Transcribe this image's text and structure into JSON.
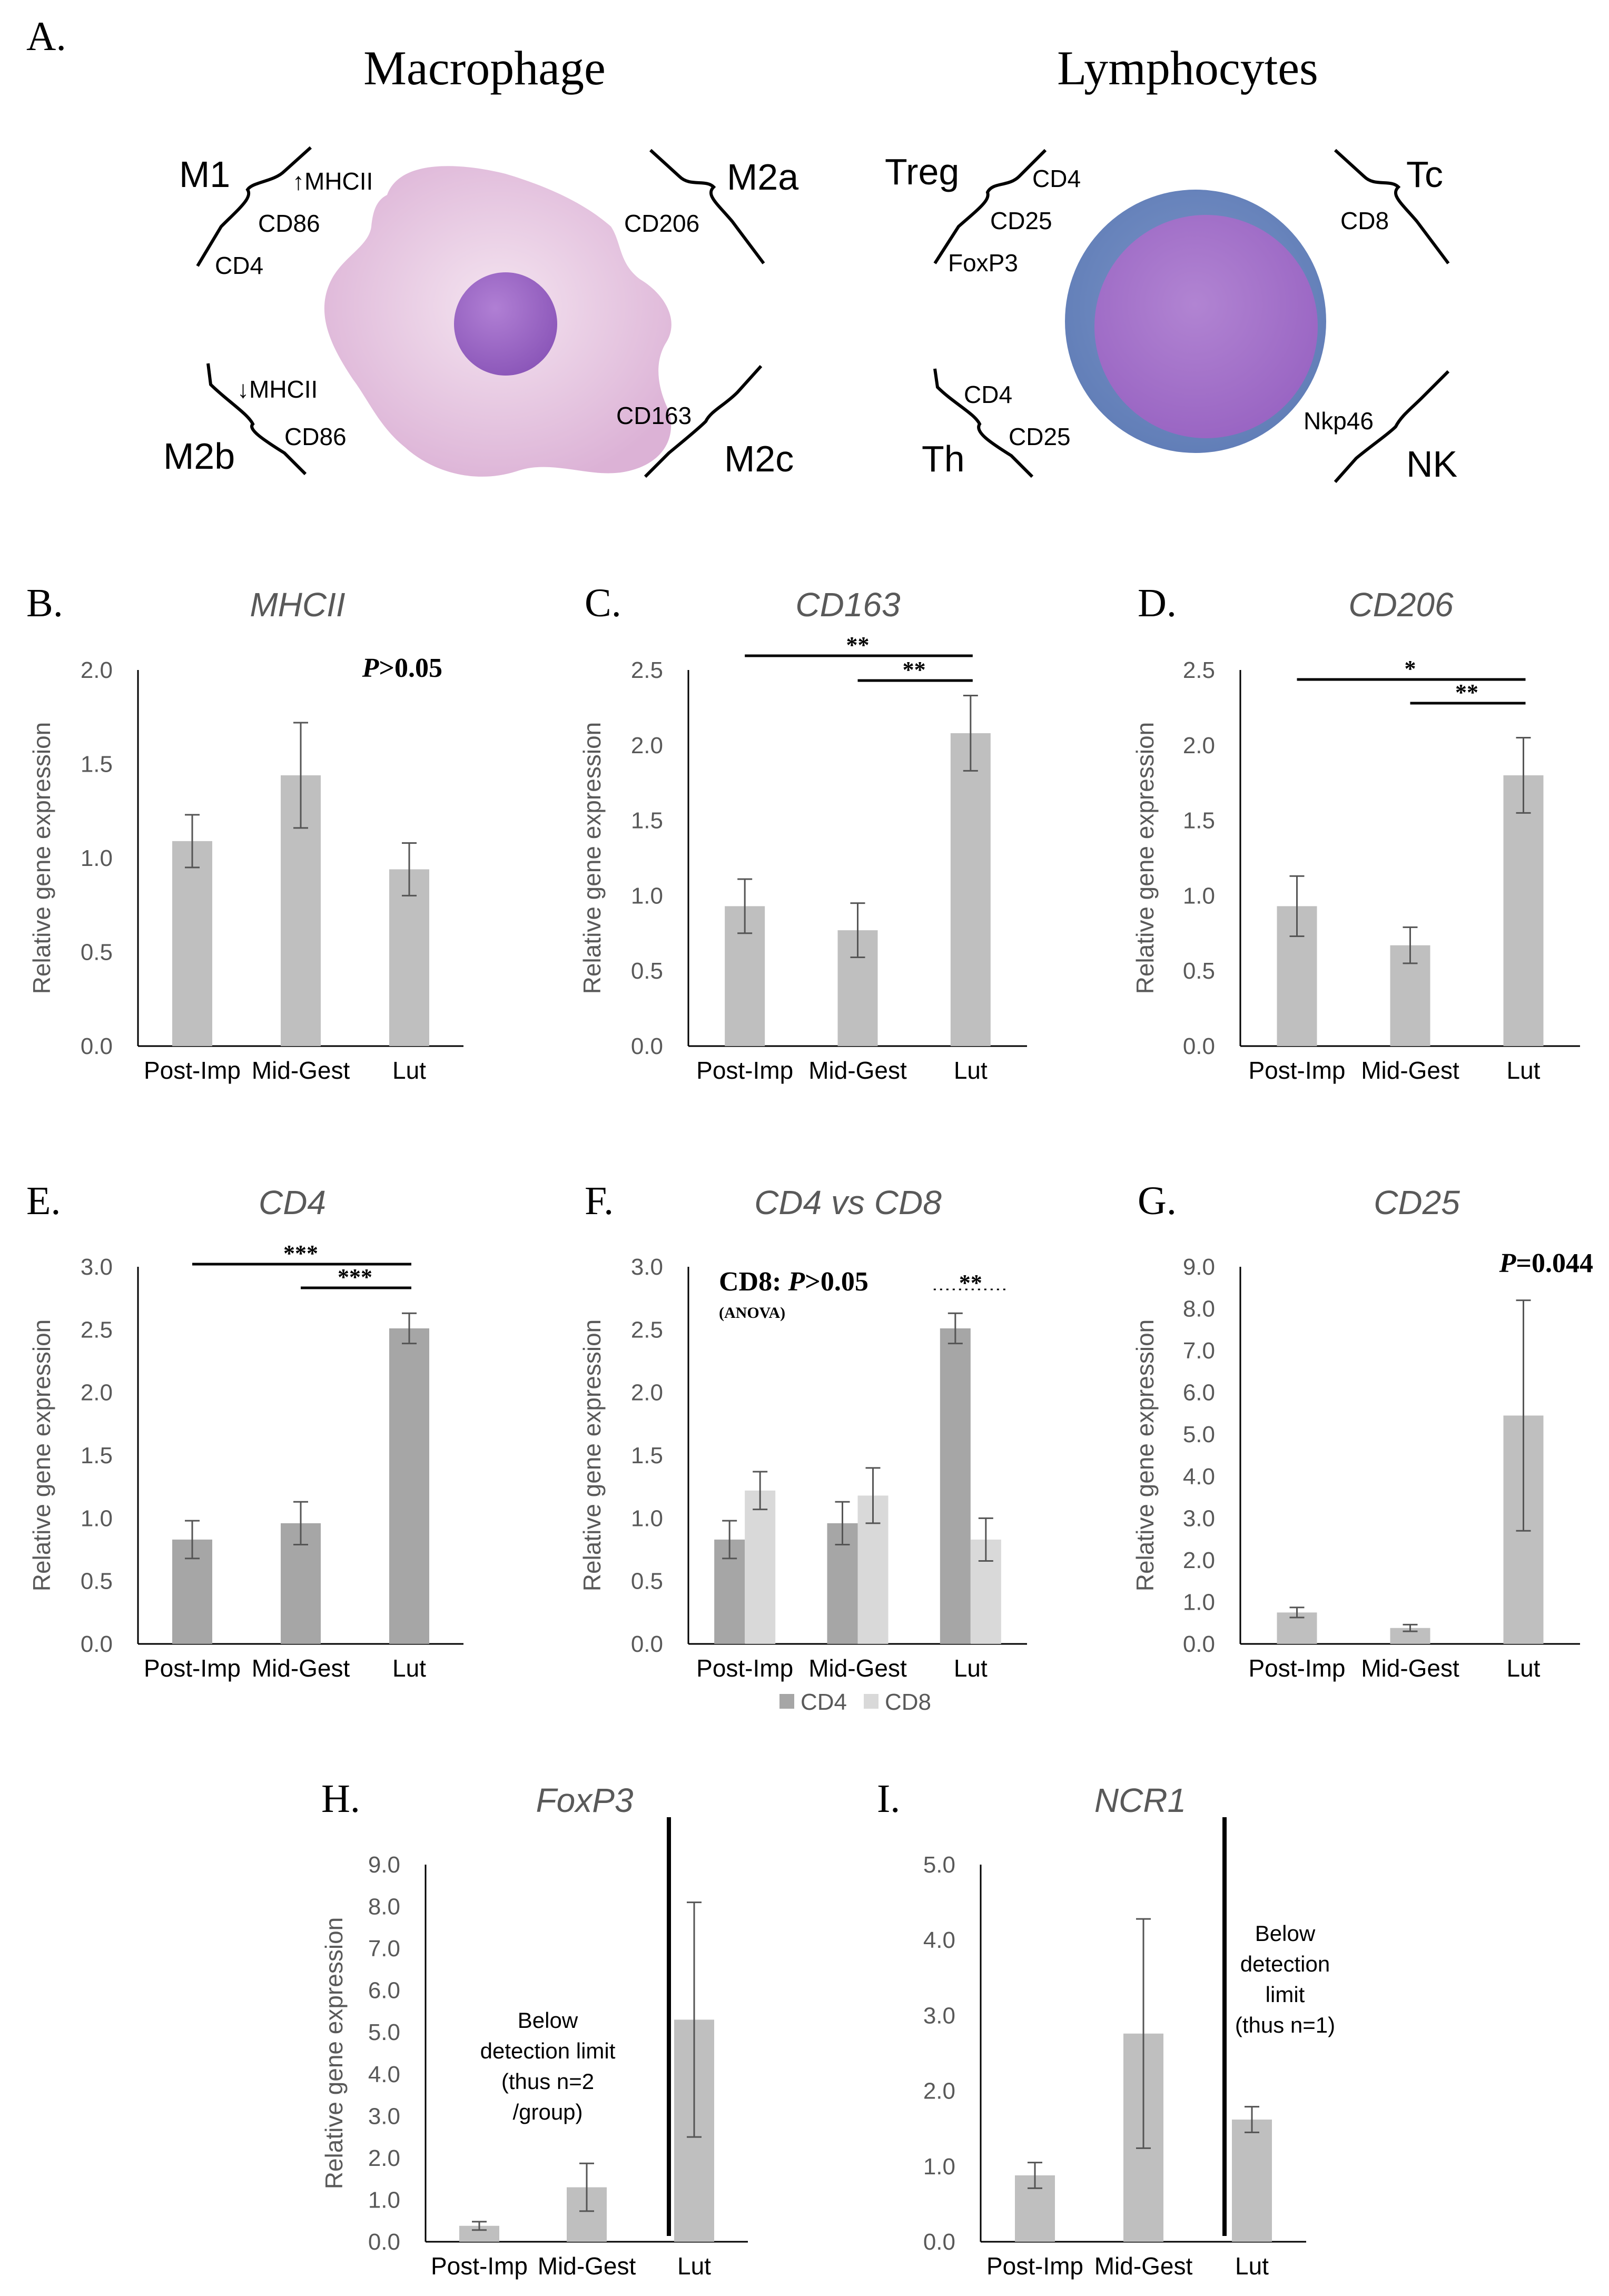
{
  "panel_a": {
    "label": "A.",
    "macrophage": {
      "title": "Macrophage",
      "groups": [
        {
          "name": "M1",
          "markers": [
            "↑MHCII",
            "CD86",
            "CD4"
          ]
        },
        {
          "name": "M2a",
          "markers": [
            "CD206"
          ]
        },
        {
          "name": "M2b",
          "markers": [
            "↓MHCII",
            "CD86"
          ]
        },
        {
          "name": "M2c",
          "markers": [
            "CD163"
          ]
        }
      ]
    },
    "lymphocytes": {
      "title": "Lymphocytes",
      "groups": [
        {
          "name": "Treg",
          "markers": [
            "CD4",
            "CD25",
            "FoxP3"
          ]
        },
        {
          "name": "Tc",
          "markers": [
            "CD8"
          ]
        },
        {
          "name": "Th",
          "markers": [
            "CD4",
            "CD25"
          ]
        },
        {
          "name": "NK",
          "markers": [
            "Nkp46"
          ]
        }
      ]
    },
    "colors": {
      "macrophage": "#e6c3e0",
      "nucleus": "#9966c2",
      "lymph_outer": "#6b86bd",
      "lymph_inner": "#a06ec6"
    }
  },
  "chart_data": [
    {
      "id": "B",
      "label": "B.",
      "type": "bar",
      "title": "MHCII",
      "ylabel": "Relative gene expression",
      "ylim": [
        0,
        2.0
      ],
      "yticks": [
        "0.0",
        "0.5",
        "1.0",
        "1.5",
        "2.0"
      ],
      "categories": [
        "Post-Imp",
        "Mid-Gest",
        "Lut"
      ],
      "series": [
        {
          "name": "MHCII",
          "color": "#bfbfbf",
          "values": [
            1.09,
            1.44,
            0.94
          ],
          "errors": [
            0.14,
            0.28,
            0.14
          ]
        }
      ],
      "annotations": [
        {
          "italic": "P",
          "text": ">0.05"
        }
      ],
      "significance": []
    },
    {
      "id": "C",
      "label": "C.",
      "type": "bar",
      "title": "CD163",
      "ylabel": "Relative gene expression",
      "ylim": [
        0,
        2.5
      ],
      "yticks": [
        "0.0",
        "0.5",
        "1.0",
        "1.5",
        "2.0",
        "2.5"
      ],
      "categories": [
        "Post-Imp",
        "Mid-Gest",
        "Lut"
      ],
      "series": [
        {
          "name": "CD163",
          "color": "#bfbfbf",
          "values": [
            0.93,
            0.77,
            2.08
          ],
          "errors": [
            0.18,
            0.18,
            0.25
          ]
        }
      ],
      "annotations": [],
      "significance": [
        {
          "from": "Post-Imp",
          "to": "Lut",
          "stars": "**"
        },
        {
          "from": "Mid-Gest",
          "to": "Lut",
          "stars": "**"
        }
      ]
    },
    {
      "id": "D",
      "label": "D.",
      "type": "bar",
      "title": "CD206",
      "ylabel": "Relative gene expression",
      "ylim": [
        0,
        2.5
      ],
      "yticks": [
        "0.0",
        "0.5",
        "1.0",
        "1.5",
        "2.0",
        "2.5"
      ],
      "categories": [
        "Post-Imp",
        "Mid-Gest",
        "Lut"
      ],
      "series": [
        {
          "name": "CD206",
          "color": "#bfbfbf",
          "values": [
            0.93,
            0.67,
            1.8
          ],
          "errors": [
            0.2,
            0.12,
            0.25
          ]
        }
      ],
      "annotations": [],
      "significance": [
        {
          "from": "Post-Imp",
          "to": "Lut",
          "stars": "*"
        },
        {
          "from": "Mid-Gest",
          "to": "Lut",
          "stars": "**"
        }
      ]
    },
    {
      "id": "E",
      "label": "E.",
      "type": "bar",
      "title": "CD4",
      "ylabel": "Relative gene expression",
      "ylim": [
        0,
        3.0
      ],
      "yticks": [
        "0.0",
        "0.5",
        "1.0",
        "1.5",
        "2.0",
        "2.5",
        "3.0"
      ],
      "categories": [
        "Post-Imp",
        "Mid-Gest",
        "Lut"
      ],
      "series": [
        {
          "name": "CD4",
          "color": "#a6a6a6",
          "values": [
            0.83,
            0.96,
            2.51
          ],
          "errors": [
            0.15,
            0.17,
            0.12
          ]
        }
      ],
      "annotations": [],
      "significance": [
        {
          "from": "Post-Imp",
          "to": "Lut",
          "stars": "***"
        },
        {
          "from": "Mid-Gest",
          "to": "Lut",
          "stars": "***"
        }
      ]
    },
    {
      "id": "F",
      "label": "F.",
      "type": "bar",
      "title": "CD4 vs CD8",
      "ylabel": "Relative gene expression",
      "ylim": [
        0,
        3.0
      ],
      "yticks": [
        "0.0",
        "0.5",
        "1.0",
        "1.5",
        "2.0",
        "2.5",
        "3.0"
      ],
      "categories": [
        "Post-Imp",
        "Mid-Gest",
        "Lut"
      ],
      "series": [
        {
          "name": "CD4",
          "color": "#a6a6a6",
          "values": [
            0.83,
            0.96,
            2.51
          ],
          "errors": [
            0.15,
            0.17,
            0.12
          ]
        },
        {
          "name": "CD8",
          "color": "#d9d9d9",
          "values": [
            1.22,
            1.18,
            0.83
          ],
          "errors": [
            0.15,
            0.22,
            0.17
          ]
        }
      ],
      "annotations": [
        {
          "bold": "CD8: ",
          "italic": "P",
          "text": ">0.05",
          "sub": "(ANOVA)"
        }
      ],
      "significance": [
        {
          "between": "CD4-CD8 at Lut",
          "stars": "**"
        }
      ],
      "legend": [
        "CD4",
        "CD8"
      ]
    },
    {
      "id": "G",
      "label": "G.",
      "type": "bar",
      "title": "CD25",
      "ylabel": "Relative gene expression",
      "ylim": [
        0,
        9.0
      ],
      "yticks": [
        "0.0",
        "1.0",
        "2.0",
        "3.0",
        "4.0",
        "5.0",
        "6.0",
        "7.0",
        "8.0",
        "9.0"
      ],
      "categories": [
        "Post-Imp",
        "Mid-Gest",
        "Lut"
      ],
      "series": [
        {
          "name": "CD25",
          "color": "#bfbfbf",
          "values": [
            0.75,
            0.38,
            5.45
          ],
          "errors": [
            0.12,
            0.08,
            2.75
          ]
        }
      ],
      "annotations": [
        {
          "italic": "P",
          "text": "=0.044"
        }
      ],
      "significance": []
    },
    {
      "id": "H",
      "label": "H.",
      "type": "bar",
      "title": "FoxP3",
      "ylabel": "Relative gene expression",
      "ylim": [
        0,
        9.0
      ],
      "yticks": [
        "0.0",
        "1.0",
        "2.0",
        "3.0",
        "4.0",
        "5.0",
        "6.0",
        "7.0",
        "8.0",
        "9.0"
      ],
      "categories": [
        "Post-Imp",
        "Mid-Gest",
        "Lut"
      ],
      "series": [
        {
          "name": "FoxP3",
          "color": "#bfbfbf",
          "values": [
            0.38,
            1.3,
            5.3
          ],
          "errors": [
            0.1,
            0.57,
            2.8
          ]
        }
      ],
      "annotations": [],
      "note": [
        "Below",
        "detection limit",
        "(thus n=2",
        "/group)"
      ],
      "significance": []
    },
    {
      "id": "I",
      "label": "I.",
      "type": "bar",
      "title": "NCR1",
      "ylabel": "",
      "ylim": [
        0,
        5.0
      ],
      "yticks": [
        "0.0",
        "1.0",
        "2.0",
        "3.0",
        "4.0",
        "5.0"
      ],
      "categories": [
        "Post-Imp",
        "Mid-Gest",
        "Lut"
      ],
      "series": [
        {
          "name": "NCR1",
          "color": "#bfbfbf",
          "values": [
            0.88,
            2.76,
            1.62
          ],
          "errors": [
            0.17,
            1.52,
            0.17
          ]
        }
      ],
      "annotations": [],
      "note": [
        "Below",
        "detection",
        "limit",
        "(thus n=1)"
      ],
      "significance": []
    }
  ]
}
